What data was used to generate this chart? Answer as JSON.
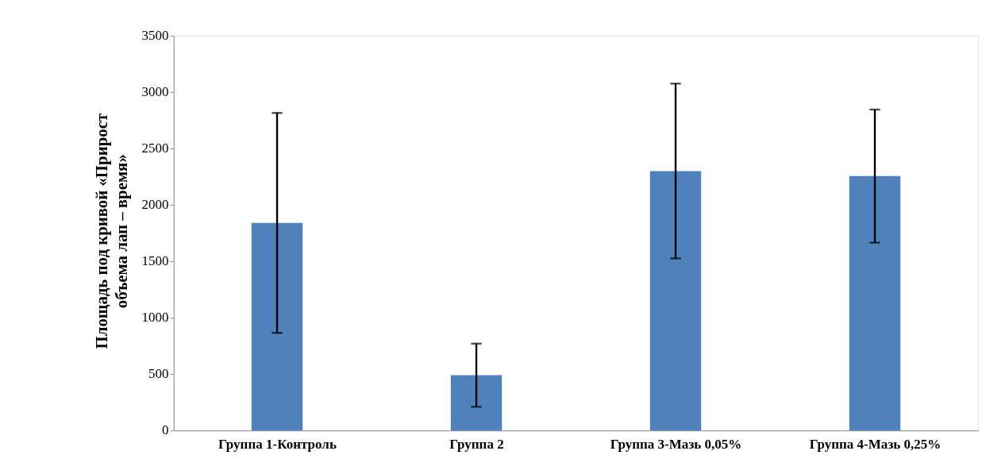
{
  "chart_data": {
    "type": "bar",
    "ylabel": "Площадь под кривой «Прирост объема лап – время»",
    "categories": [
      "Группа 1-Контроль",
      "Группа 2",
      "Группа 3-Мазь 0,05%",
      "Группа 4-Мазь 0,25%"
    ],
    "values": [
      1840,
      490,
      2300,
      2255
    ],
    "errors": [
      975,
      280,
      775,
      590
    ],
    "color": "#4f81bd",
    "ylim": [
      0,
      3500
    ],
    "yticks": [
      0,
      500,
      1000,
      1500,
      2000,
      2500,
      3000,
      3500
    ],
    "grid": false
  }
}
